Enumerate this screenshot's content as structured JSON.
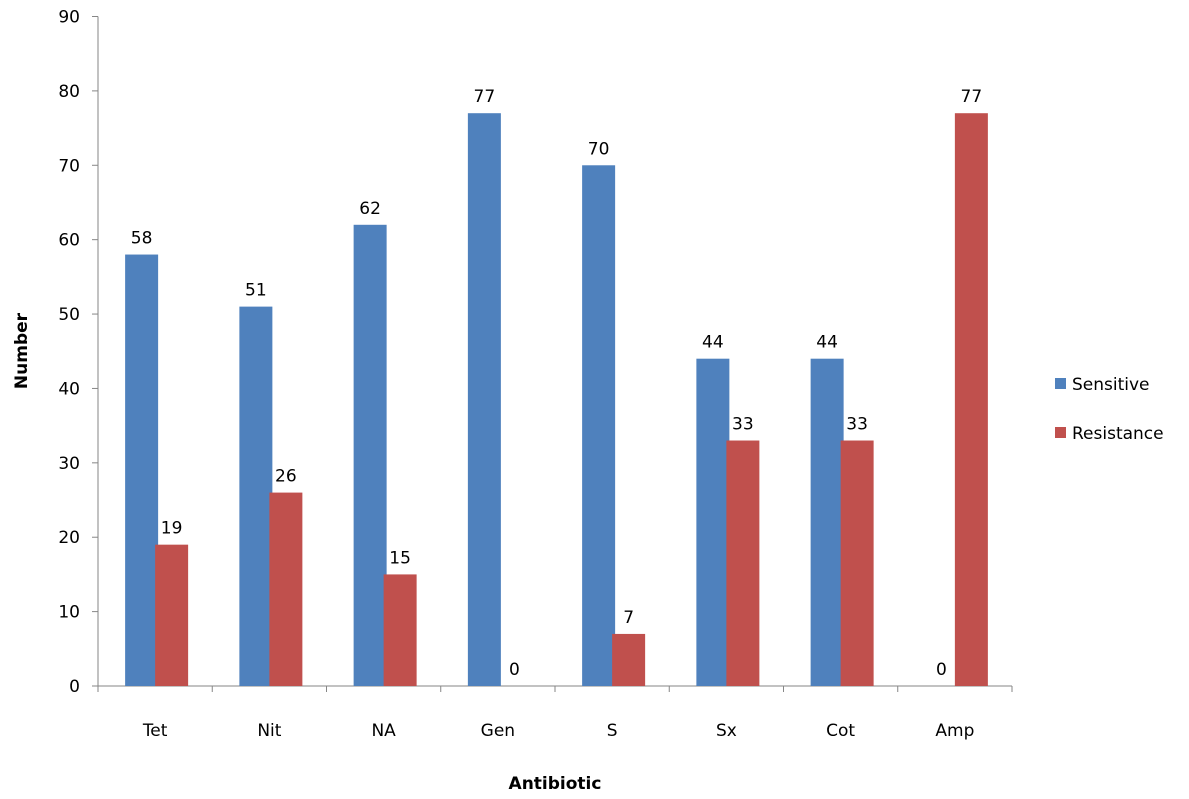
{
  "chart_data": {
    "type": "bar",
    "title": "",
    "xlabel": "Antibiotic",
    "ylabel": "Number",
    "ylim": [
      0,
      90
    ],
    "yticks": [
      0,
      10,
      20,
      30,
      40,
      50,
      60,
      70,
      80,
      90
    ],
    "grid": false,
    "legend_position": "right",
    "categories": [
      "Tet",
      "Nit",
      "NA",
      "Gen",
      "S",
      "Sx",
      "Cot",
      "Amp"
    ],
    "series": [
      {
        "name": "Sensitive",
        "color": "#4f81bd",
        "values": [
          58,
          51,
          62,
          77,
          70,
          44,
          44,
          0
        ],
        "data_labels": [
          "58",
          "51",
          "62",
          "77",
          "70",
          "44",
          "44",
          "0"
        ]
      },
      {
        "name": "Resistance",
        "color": "#c0504d",
        "values": [
          19,
          26,
          15,
          0,
          7,
          33,
          33,
          77
        ],
        "data_labels": [
          "19",
          "26",
          "15",
          "0",
          "7",
          "33",
          "33",
          "77"
        ]
      }
    ]
  }
}
